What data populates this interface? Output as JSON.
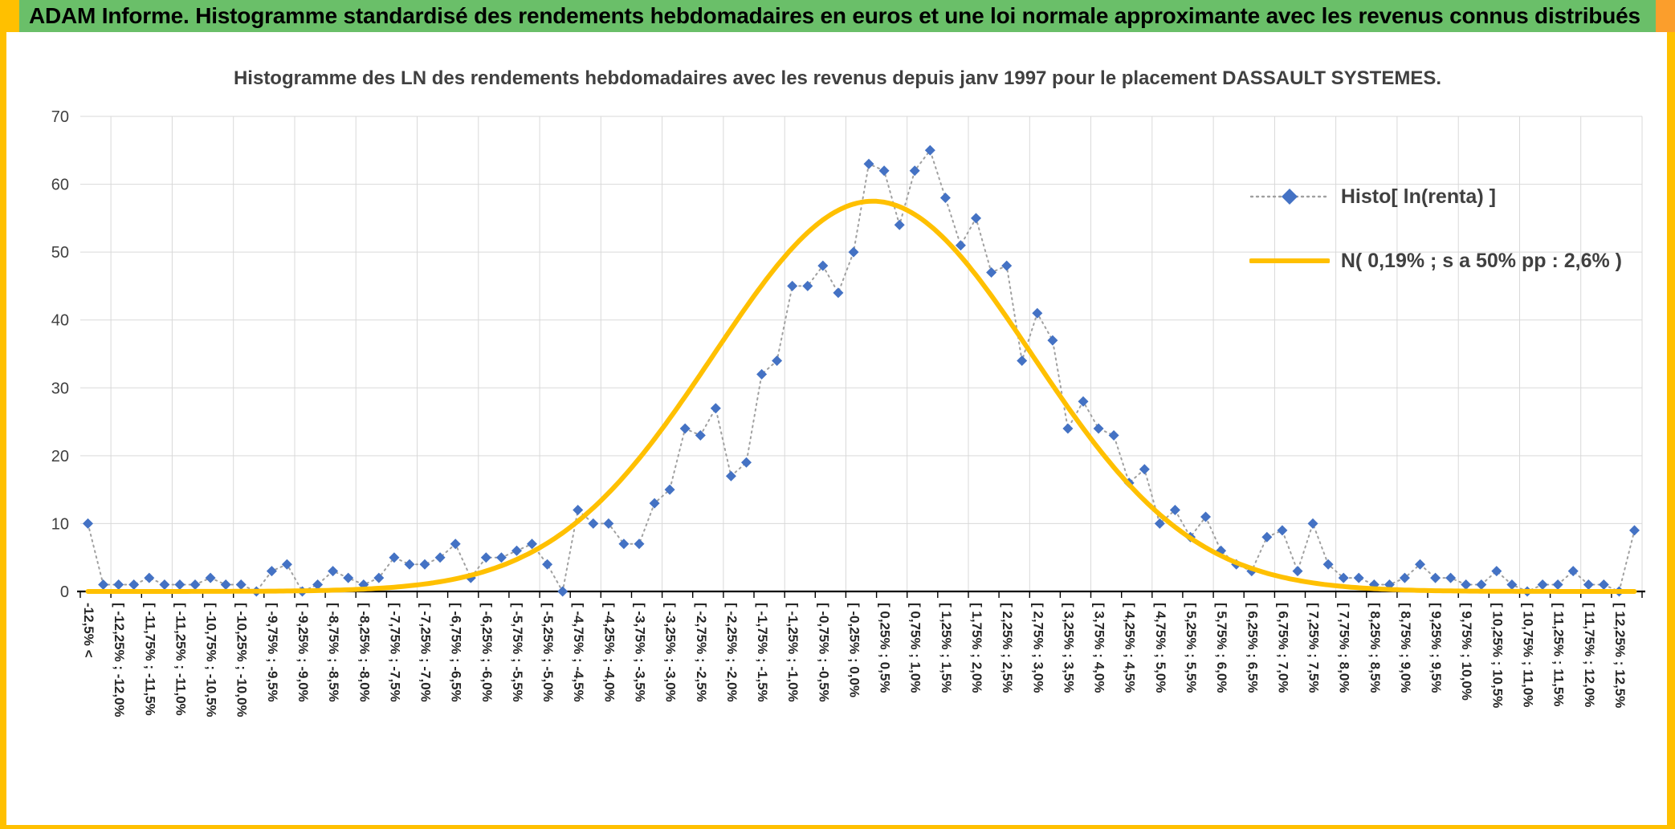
{
  "header": {
    "title": "ADAM Informe. Histogramme standardisé des rendements hebdomadaires en euros et une loi normale approximante avec les revenus connus distribués",
    "bg_color": "#6ABF69",
    "corner_left_color": "#FFC000",
    "corner_right_color": "#FB9E2C",
    "frame_color": "#FFC000"
  },
  "chart_data": {
    "type": "line",
    "title": "Histogramme des LN des rendements hebdomadaires avec les revenus depuis janv 1997 pour le placement DASSAULT SYSTEMES.",
    "ylim": [
      0,
      70
    ],
    "yticks": [
      0,
      10,
      20,
      30,
      40,
      50,
      60,
      70
    ],
    "grid": true,
    "legend_position": "top-right",
    "bin_width_pct": 0.25,
    "x_center_start_pct": -12.625,
    "categories": [
      "-12,5% <",
      "",
      "[ -12,25% ; -12,0%",
      "",
      "[ -11,75% ; -11,5%",
      "",
      "[ -11,25% ; -11,0%",
      "",
      "[ -10,75% ; -10,5%",
      "",
      "[ -10,25% ; -10,0%",
      "",
      "[ -9,75% ; -9,5%",
      "",
      "[ -9,25% ; -9,0%",
      "",
      "[ -8,75% ; -8,5%",
      "",
      "[ -8,25% ; -8,0%",
      "",
      "[ -7,75% ; -7,5%",
      "",
      "[ -7,25% ; -7,0%",
      "",
      "[ -6,75% ; -6,5%",
      "",
      "[ -6,25% ; -6,0%",
      "",
      "[ -5,75% ; -5,5%",
      "",
      "[ -5,25% ; -5,0%",
      "",
      "[ -4,75% ; -4,5%",
      "",
      "[ -4,25% ; -4,0%",
      "",
      "[ -3,75% ; -3,5%",
      "",
      "[ -3,25% ; -3,0%",
      "",
      "[ -2,75% ; -2,5%",
      "",
      "[ -2,25% ; -2,0%",
      "",
      "[ -1,75% ; -1,5%",
      "",
      "[ -1,25% ; -1,0%",
      "",
      "[ -0,75% ; -0,5%",
      "",
      "[ -0,25% ; 0,0%",
      "",
      "[ 0,25% ; 0,5%",
      "",
      "[ 0,75% ; 1,0%",
      "",
      "[ 1,25% ; 1,5%",
      "",
      "[ 1,75% ; 2,0%",
      "",
      "[ 2,25% ; 2,5%",
      "",
      "[ 2,75% ; 3,0%",
      "",
      "[ 3,25% ; 3,5%",
      "",
      "[ 3,75% ; 4,0%",
      "",
      "[ 4,25% ; 4,5%",
      "",
      "[ 4,75% ; 5,0%",
      "",
      "[ 5,25% ; 5,5%",
      "",
      "[ 5,75% ; 6,0%",
      "",
      "[ 6,25% ; 6,5%",
      "",
      "[ 6,75% ; 7,0%",
      "",
      "[ 7,25% ; 7,5%",
      "",
      "[ 7,75% ; 8,0%",
      "",
      "[ 8,25% ; 8,5%",
      "",
      "[ 8,75% ; 9,0%",
      "",
      "[ 9,25% ; 9,5%",
      "",
      "[ 9,75% ; 10,0%",
      "",
      "[ 10,25% ; 10,5%",
      "",
      "[ 10,75% ; 11,0%",
      "",
      "[ 11,25% ; 11,5%",
      "",
      "[ 11,75% ; 12,0%",
      "",
      "[ 12,25% ; 12,5%",
      ""
    ],
    "series": [
      {
        "name": "Histo[ ln(renta) ]",
        "kind": "scatter-with-dotted-line",
        "marker": "diamond",
        "color": "#4472C4",
        "line_color": "#A0A0A0",
        "values": [
          10,
          1,
          1,
          1,
          2,
          1,
          1,
          1,
          2,
          1,
          1,
          0,
          3,
          4,
          0,
          1,
          3,
          2,
          1,
          2,
          5,
          4,
          4,
          5,
          7,
          2,
          5,
          5,
          6,
          7,
          4,
          0,
          12,
          10,
          10,
          7,
          7,
          13,
          15,
          24,
          23,
          27,
          17,
          19,
          32,
          34,
          45,
          45,
          48,
          44,
          50,
          63,
          62,
          54,
          62,
          65,
          58,
          51,
          55,
          47,
          48,
          34,
          41,
          37,
          24,
          28,
          24,
          23,
          16,
          18,
          10,
          12,
          8,
          11,
          6,
          4,
          3,
          8,
          9,
          3,
          10,
          4,
          2,
          2,
          1,
          1,
          2,
          4,
          2,
          2,
          1,
          1,
          3,
          1,
          0,
          1,
          1,
          3,
          1,
          1,
          0,
          9
        ]
      },
      {
        "name": "N( 0,19% ; s a 50% pp : 2,6% )",
        "kind": "smooth-normal-curve",
        "color": "#FFC000",
        "normal": {
          "mean_pct": 0.19,
          "sd_pct": 2.6,
          "peak": 57.5
        }
      }
    ]
  }
}
